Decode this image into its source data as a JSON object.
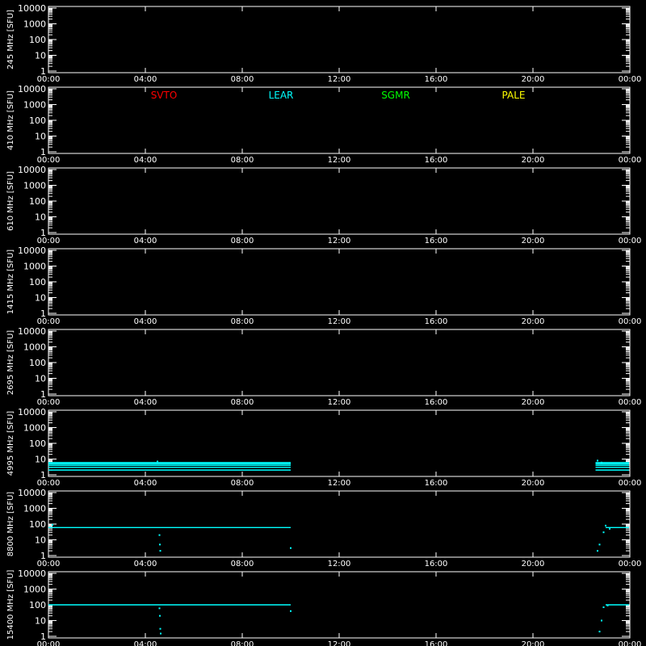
{
  "chart_data": {
    "type": "scatter",
    "y_scale": "log",
    "ylim": [
      1,
      10000
    ],
    "xlim": [
      "00:00",
      "24:00"
    ],
    "x_ticks": [
      "00:00",
      "04:00",
      "08:00",
      "12:00",
      "16:00",
      "20:00",
      "00:00"
    ],
    "y_ticks": [
      "1",
      "10",
      "100",
      "1000",
      "10000"
    ],
    "legend": [
      {
        "name": "SVTO",
        "color": "#ff0000"
      },
      {
        "name": "LEAR",
        "color": "#00ffff"
      },
      {
        "name": "SGMR",
        "color": "#00ff00"
      },
      {
        "name": "PALE",
        "color": "#ffff00"
      }
    ],
    "panels": [
      {
        "ylabel": "245 MHz [SFU]",
        "series": []
      },
      {
        "ylabel": "410 MHz [SFU]",
        "series": [],
        "show_legend": true
      },
      {
        "ylabel": "610 MHz [SFU]",
        "series": []
      },
      {
        "ylabel": "1415 MHz [SFU]",
        "series": []
      },
      {
        "ylabel": "2695 MHz [SFU]",
        "series": []
      },
      {
        "ylabel": "4995 MHz [SFU]",
        "series": [
          {
            "station": "LEAR",
            "color": "#00ffff",
            "levels": [
              2,
              3,
              4,
              5,
              6
            ],
            "segments": [
              [
                "00:00",
                "10:00"
              ],
              [
                "22:35",
                "24:00"
              ]
            ],
            "points": [
              [
                "04:30",
                7
              ],
              [
                "22:40",
                8
              ],
              [
                "22:50",
                6
              ]
            ]
          }
        ]
      },
      {
        "ylabel": "8800 MHz [SFU]",
        "series": [
          {
            "station": "LEAR",
            "color": "#00ffff",
            "levels": [
              60
            ],
            "segments": [
              [
                "00:00",
                "10:00"
              ],
              [
                "23:00",
                "24:00"
              ]
            ],
            "points": [
              [
                "00:10",
                90
              ],
              [
                "04:35",
                20
              ],
              [
                "04:36",
                5
              ],
              [
                "04:37",
                2
              ],
              [
                "10:00",
                3
              ],
              [
                "22:40",
                2
              ],
              [
                "22:45",
                5
              ],
              [
                "22:55",
                30
              ],
              [
                "23:00",
                80
              ],
              [
                "23:10",
                50
              ]
            ]
          }
        ]
      },
      {
        "ylabel": "15400 MHz [SFU]",
        "series": [
          {
            "station": "LEAR",
            "color": "#00ffff",
            "levels": [
              100
            ],
            "segments": [
              [
                "00:00",
                "10:00"
              ],
              [
                "23:00",
                "24:00"
              ]
            ],
            "points": [
              [
                "04:35",
                60
              ],
              [
                "04:36",
                20
              ],
              [
                "04:37",
                3
              ],
              [
                "04:38",
                1.5
              ],
              [
                "10:00",
                40
              ],
              [
                "22:45",
                2
              ],
              [
                "22:50",
                10
              ],
              [
                "22:55",
                70
              ],
              [
                "23:05",
                90
              ]
            ]
          }
        ]
      }
    ]
  }
}
